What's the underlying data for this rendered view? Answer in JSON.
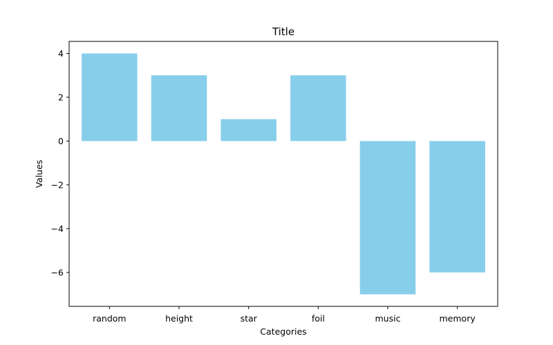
{
  "chart_data": {
    "type": "bar",
    "title": "Title",
    "xlabel": "Categories",
    "ylabel": "Values",
    "categories": [
      "random",
      "height",
      "star",
      "foil",
      "music",
      "memory"
    ],
    "values": [
      4,
      3,
      1,
      3,
      -7,
      -6
    ],
    "ylim": [
      -7.55,
      4.55
    ],
    "yticks": [
      4,
      2,
      0,
      -2,
      -4,
      -6
    ],
    "ytick_labels": [
      "4",
      "2",
      "0",
      "−2",
      "−4",
      "−6"
    ],
    "grid": false,
    "legend": "none",
    "bar_color": "#87ceeb"
  }
}
